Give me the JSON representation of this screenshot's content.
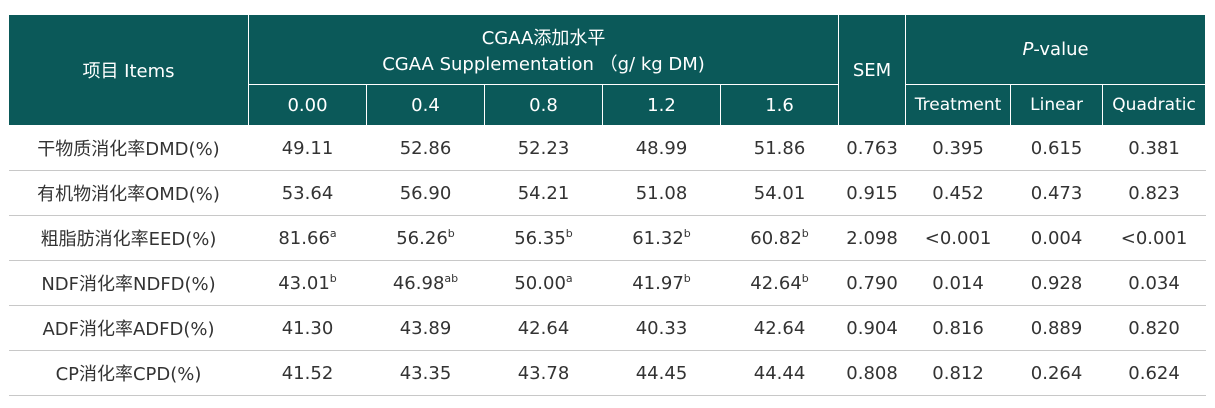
{
  "header": {
    "items": "项目 Items",
    "group_title": "CGAA添加水平",
    "group_subtitle": "CGAA Supplementation （g/ kg DM)",
    "levels": [
      "0.00",
      "0.4",
      "0.8",
      "1.2",
      "1.6"
    ],
    "sem": "SEM",
    "pvalue_italic": "P",
    "pvalue_rest": "-value",
    "pcols": [
      "Treatment",
      "Linear",
      "Quadratic"
    ]
  },
  "rows": [
    {
      "label": "干物质消化率DMD(%)",
      "means": [
        {
          "value": "49.11"
        },
        {
          "value": "52.86"
        },
        {
          "value": "52.23"
        },
        {
          "value": "48.99"
        },
        {
          "value": "51.86"
        }
      ],
      "sem": "0.763",
      "p": [
        "0.395",
        "0.615",
        "0.381"
      ]
    },
    {
      "label": "有机物消化率OMD(%)",
      "means": [
        {
          "value": "53.64"
        },
        {
          "value": "56.90"
        },
        {
          "value": "54.21"
        },
        {
          "value": "51.08"
        },
        {
          "value": "54.01"
        }
      ],
      "sem": "0.915",
      "p": [
        "0.452",
        "0.473",
        "0.823"
      ]
    },
    {
      "label": "粗脂肪消化率EED(%)",
      "means": [
        {
          "value": "81.66",
          "sup": "a"
        },
        {
          "value": "56.26",
          "sup": "b"
        },
        {
          "value": "56.35",
          "sup": "b"
        },
        {
          "value": "61.32",
          "sup": "b"
        },
        {
          "value": "60.82",
          "sup": "b"
        }
      ],
      "sem": "2.098",
      "p": [
        "<0.001",
        "0.004",
        "<0.001"
      ]
    },
    {
      "label": "NDF消化率NDFD(%)",
      "means": [
        {
          "value": "43.01",
          "sup": "b"
        },
        {
          "value": "46.98",
          "sup": "ab"
        },
        {
          "value": "50.00",
          "sup": "a"
        },
        {
          "value": "41.97",
          "sup": "b"
        },
        {
          "value": "42.64",
          "sup": "b"
        }
      ],
      "sem": "0.790",
      "p": [
        "0.014",
        "0.928",
        "0.034"
      ]
    },
    {
      "label": "ADF消化率ADFD(%)",
      "means": [
        {
          "value": "41.30"
        },
        {
          "value": "43.89"
        },
        {
          "value": "42.64"
        },
        {
          "value": "40.33"
        },
        {
          "value": "42.64"
        }
      ],
      "sem": "0.904",
      "p": [
        "0.816",
        "0.889",
        "0.820"
      ]
    },
    {
      "label": "CP消化率CPD(%)",
      "means": [
        {
          "value": "41.52"
        },
        {
          "value": "43.35"
        },
        {
          "value": "43.78"
        },
        {
          "value": "44.45"
        },
        {
          "value": "44.44"
        }
      ],
      "sem": "0.808",
      "p": [
        "0.812",
        "0.264",
        "0.624"
      ]
    }
  ]
}
